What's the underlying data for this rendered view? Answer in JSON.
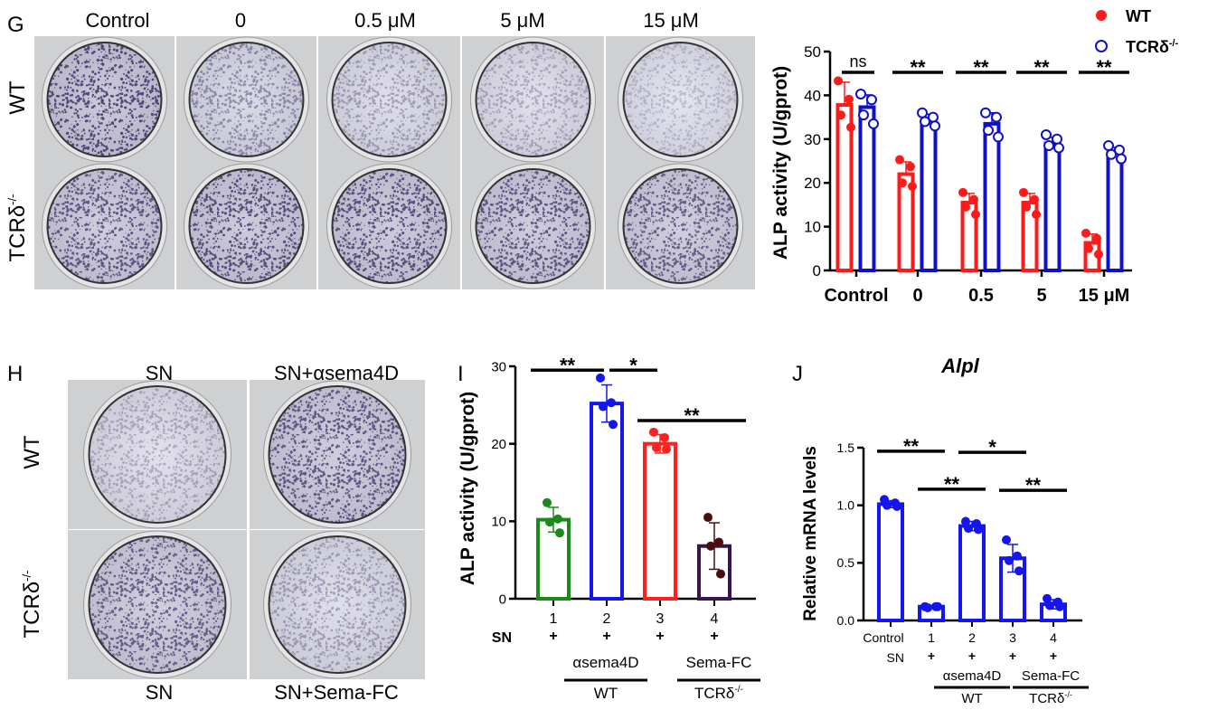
{
  "panels": {
    "G": "G",
    "H": "H",
    "I": "I",
    "J": "J"
  },
  "panelG": {
    "column_headers": [
      "Control",
      "0",
      "0.5 μM",
      "5 μM",
      "15 μM"
    ],
    "row_labels": [
      {
        "base": "WT",
        "sup": ""
      },
      {
        "base": "TCRδ",
        "sup": "-/-"
      }
    ],
    "stain": [
      [
        0.85,
        0.45,
        0.35,
        0.3,
        0.22
      ],
      [
        0.75,
        0.8,
        0.8,
        0.75,
        0.7
      ]
    ]
  },
  "panelH": {
    "top_headers": [
      "SN",
      "SN+αsema4D"
    ],
    "bottom_headers": [
      "SN",
      "SN+Sema-FC"
    ],
    "row_labels": [
      {
        "base": "WT",
        "sup": ""
      },
      {
        "base": "TCRδ",
        "sup": "-/-"
      }
    ],
    "stain": [
      [
        0.3,
        0.75
      ],
      [
        0.7,
        0.35
      ]
    ]
  },
  "colors": {
    "wt": "#ff1a1a",
    "tcr": "#1010c8",
    "green": "#1a8a1a",
    "blue": "#1515f0",
    "red": "#ff2020",
    "purple": "#3a1450",
    "maroon": "#4a0c0c"
  },
  "chart_data": [
    {
      "id": "G",
      "type": "bar",
      "ylabel": "ALP activity (U/gprot)",
      "ylim": [
        0,
        50
      ],
      "yticks": [
        0,
        10,
        20,
        30,
        40,
        50
      ],
      "categories": [
        "Control",
        "0",
        "0.5",
        "5",
        "15 μM"
      ],
      "legend": [
        {
          "label": "WT",
          "sup": "",
          "marker": "filled-circle"
        },
        {
          "label": "TCRδ",
          "sup": "-/-",
          "marker": "open-circle"
        }
      ],
      "legend_position": "top-right",
      "series": [
        {
          "name": "WT",
          "values": [
            37.8,
            22.0,
            15.5,
            15.5,
            6.3
          ],
          "errors": [
            5.2,
            2.8,
            2.1,
            2.1,
            2.0
          ],
          "points": [
            [
              43.3,
              39.1,
              35.5,
              32.7
            ],
            [
              25.3,
              23.7,
              20.0,
              19.2
            ],
            [
              17.8,
              16.2,
              14.5,
              12.8
            ],
            [
              17.8,
              16.2,
              14.5,
              12.8
            ],
            [
              8.5,
              7.3,
              5.0,
              3.7
            ]
          ]
        },
        {
          "name": "TCRδ-/-",
          "values": [
            37.3,
            34.2,
            33.5,
            29.0,
            26.8
          ],
          "errors": [
            2.8,
            1.5,
            2.5,
            1.4,
            1.3
          ],
          "points": [
            [
              40.3,
              39.0,
              35.5,
              33.5
            ],
            [
              36.0,
              35.0,
              34.0,
              33.0
            ],
            [
              36.0,
              35.0,
              32.0,
              30.5
            ],
            [
              31.0,
              30.0,
              28.5,
              28.0
            ],
            [
              28.5,
              27.5,
              26.5,
              25.5
            ]
          ]
        }
      ],
      "significance": [
        "ns",
        "**",
        "**",
        "**",
        "**"
      ]
    },
    {
      "id": "I",
      "type": "bar",
      "ylabel": "ALP activity (U/gprot)",
      "ylim": [
        0,
        30
      ],
      "yticks": [
        0,
        10,
        20,
        30
      ],
      "categories": [
        "1",
        "2",
        "3",
        "4"
      ],
      "sn_label": "SN",
      "sn_marks": [
        "+",
        "+",
        "+",
        "+"
      ],
      "groups": [
        {
          "top": "αsema4D",
          "bottom": "WT",
          "sup": ""
        },
        {
          "top": "Sema-FC",
          "bottom": "TCRδ",
          "sup": "-/-"
        }
      ],
      "values": [
        10.2,
        25.2,
        20.0,
        6.8
      ],
      "errors": [
        1.6,
        2.4,
        1.2,
        3.0
      ],
      "points": [
        [
          12.4,
          10.3,
          9.9,
          8.5
        ],
        [
          28.5,
          25.3,
          24.8,
          22.5
        ],
        [
          21.5,
          20.8,
          19.5,
          19.3
        ],
        [
          10.5,
          7.3,
          6.8,
          3.2
        ]
      ],
      "bar_colors": [
        "green",
        "blue",
        "red",
        "purple"
      ],
      "point_colors": [
        "green",
        "blue",
        "red",
        "maroon"
      ],
      "significance": [
        {
          "from": 0,
          "to": 1,
          "level": 29.5,
          "label": "**"
        },
        {
          "from": 1,
          "to": 2,
          "level": 29.5,
          "label": "*"
        },
        {
          "from": 2,
          "to": 3,
          "level": 23.0,
          "label": "**"
        }
      ]
    },
    {
      "id": "J",
      "type": "bar",
      "title": "Alpl",
      "ylabel": "Relative mRNA levels",
      "ylim": [
        0,
        1.5
      ],
      "yticks": [
        "0.0",
        "0.5",
        "1.0",
        "1.5"
      ],
      "categories": [
        "Control",
        "1",
        "2",
        "3",
        "4"
      ],
      "sn_label": "SN",
      "sn_marks": [
        "",
        "+",
        "+",
        "+",
        "+"
      ],
      "groups": [
        {
          "top": "αsema4D",
          "bottom": "WT",
          "sup": ""
        },
        {
          "top": "Sema-FC",
          "bottom": "TCRδ",
          "sup": "-/-"
        }
      ],
      "values": [
        1.01,
        0.12,
        0.82,
        0.54,
        0.14
      ],
      "errors": [
        0.03,
        0.01,
        0.04,
        0.12,
        0.04
      ],
      "points": [
        [
          1.05,
          1.02,
          1.0,
          0.99
        ],
        [
          0.12,
          0.12,
          0.11,
          0.12
        ],
        [
          0.86,
          0.84,
          0.8,
          0.79
        ],
        [
          0.7,
          0.56,
          0.52,
          0.43
        ],
        [
          0.19,
          0.16,
          0.13,
          0.12
        ]
      ],
      "significance": [
        {
          "from": 0,
          "to": 1,
          "level": 1.47,
          "label": "**"
        },
        {
          "from": 2,
          "to": 3,
          "level": 1.46,
          "label": "*"
        },
        {
          "from": 1,
          "to": 2,
          "level": 1.14,
          "label": "**"
        },
        {
          "from": 3,
          "to": 4,
          "level": 1.13,
          "label": "**"
        }
      ]
    }
  ]
}
